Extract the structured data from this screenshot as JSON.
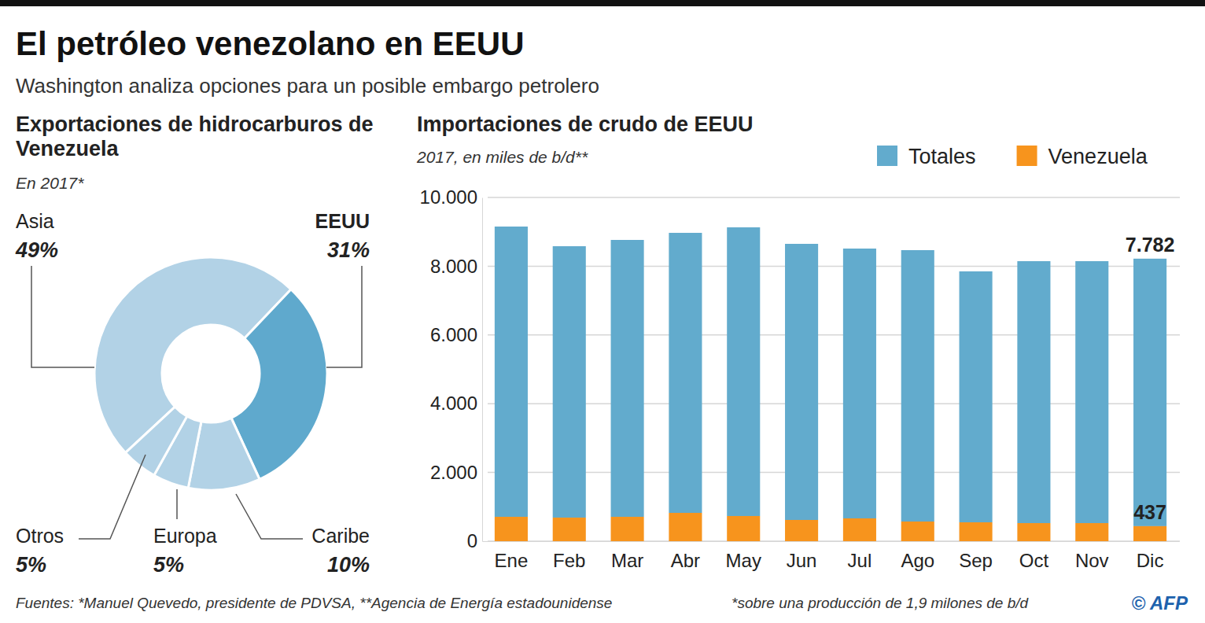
{
  "title": "El petróleo venezolano en EEUU",
  "subtitle": "Washington analiza opciones para un posible embargo petrolero",
  "footer": {
    "source": "Fuentes: *Manuel Quevedo, presidente de PDVSA, **Agencia de Energía estadounidense",
    "note": "*sobre una producción de 1,9 milones de b/d",
    "credit": "© AFP"
  },
  "chart_data": [
    {
      "type": "donut",
      "title": "Exportaciones de hidrocarburos de Venezuela",
      "subtitle": "En 2017*",
      "categories": [
        "Asia",
        "EEUU",
        "Caribe",
        "Europa",
        "Otros"
      ],
      "values": [
        49,
        31,
        10,
        5,
        5
      ],
      "value_labels": [
        "49%",
        "31%",
        "10%",
        "5%",
        "5%"
      ],
      "colors": [
        "#b2d2e6",
        "#5fa9cd",
        "#b2d2e6",
        "#b2d2e6",
        "#b2d2e6"
      ],
      "data_labels": true
    },
    {
      "type": "bar",
      "title": "Importaciones de crudo de EEUU",
      "subtitle": "2017, en miles de b/d**",
      "categories": [
        "Ene",
        "Feb",
        "Mar",
        "Abr",
        "May",
        "Jun",
        "Jul",
        "Ago",
        "Sep",
        "Oct",
        "Nov",
        "Dic"
      ],
      "series": [
        {
          "name": "Totales",
          "color": "#62abcd",
          "values": [
            8444,
            7895,
            8055,
            8146,
            8398,
            8032,
            7849,
            7895,
            7300,
            7620,
            7620,
            7782
          ],
          "value_labels": [
            null,
            null,
            null,
            null,
            null,
            null,
            null,
            null,
            null,
            null,
            null,
            "7.782"
          ]
        },
        {
          "name": "Venezuela",
          "color": "#f7941d",
          "values": [
            709,
            686,
            709,
            824,
            732,
            618,
            664,
            572,
            549,
            526,
            526,
            437
          ],
          "value_labels": [
            null,
            null,
            null,
            null,
            null,
            null,
            null,
            null,
            null,
            null,
            null,
            "437"
          ]
        }
      ],
      "stacked": true,
      "data_labels": true,
      "ylim": [
        0,
        10000
      ],
      "yticks": [
        0,
        {
          "value": 2000,
          "label": "2.000"
        },
        {
          "value": 4000,
          "label": "4.000"
        },
        {
          "value": 6000,
          "label": "6.000"
        },
        {
          "value": 8000,
          "label": "8.000"
        },
        {
          "value": 10000,
          "label": "10.000"
        }
      ],
      "grid": true,
      "legend": "top-right"
    }
  ]
}
